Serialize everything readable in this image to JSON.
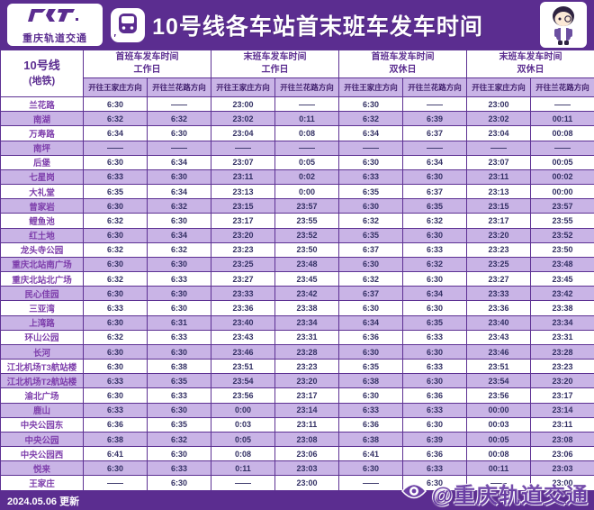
{
  "header": {
    "logo_text": "重庆轨道交通",
    "title": "10号线各车站首末班车发车时间"
  },
  "icons": {
    "train-icon": "metro train front glyph",
    "crt-logo-icon": "stylized CRT monogram",
    "mascot-icon": "CRT cartoon mascot",
    "eye-icon": "weibo eye watermark glyph"
  },
  "colors": {
    "brand_purple": "#5b2d90",
    "stripe_lavender": "#c9b4e6",
    "dir_header_lavender": "#c9b4e6",
    "time_text": "#333064",
    "station_text": "#7d3dab"
  },
  "table": {
    "line_label_1": "10号线",
    "line_label_2": "(地铁)",
    "groups": [
      {
        "title": "首班车发车时间",
        "day": "工作日"
      },
      {
        "title": "末班车发车时间",
        "day": "工作日"
      },
      {
        "title": "首班车发车时间",
        "day": "双休日"
      },
      {
        "title": "末班车发车时间",
        "day": "双休日"
      }
    ],
    "direction_a": "开往王家庄方向",
    "direction_b": "开往兰花路方向",
    "rows": [
      {
        "station": "兰花路",
        "times": [
          "6:30",
          "——",
          "23:00",
          "——",
          "6:30",
          "——",
          "23:00",
          "——"
        ]
      },
      {
        "station": "南湖",
        "times": [
          "6:32",
          "6:32",
          "23:02",
          "0:11",
          "6:32",
          "6:39",
          "23:02",
          "00:11"
        ]
      },
      {
        "station": "万寿路",
        "times": [
          "6:34",
          "6:30",
          "23:04",
          "0:08",
          "6:34",
          "6:37",
          "23:04",
          "00:08"
        ]
      },
      {
        "station": "南坪",
        "times": [
          "——",
          "——",
          "——",
          "——",
          "——",
          "——",
          "——",
          "——"
        ]
      },
      {
        "station": "后堡",
        "times": [
          "6:30",
          "6:34",
          "23:07",
          "0:05",
          "6:30",
          "6:34",
          "23:07",
          "00:05"
        ]
      },
      {
        "station": "七星岗",
        "times": [
          "6:33",
          "6:30",
          "23:11",
          "0:02",
          "6:33",
          "6:30",
          "23:11",
          "00:02"
        ]
      },
      {
        "station": "大礼堂",
        "times": [
          "6:35",
          "6:34",
          "23:13",
          "0:00",
          "6:35",
          "6:37",
          "23:13",
          "00:00"
        ]
      },
      {
        "station": "曾家岩",
        "times": [
          "6:30",
          "6:32",
          "23:15",
          "23:57",
          "6:30",
          "6:35",
          "23:15",
          "23:57"
        ]
      },
      {
        "station": "鲤鱼池",
        "times": [
          "6:32",
          "6:30",
          "23:17",
          "23:55",
          "6:32",
          "6:32",
          "23:17",
          "23:55"
        ]
      },
      {
        "station": "红土地",
        "times": [
          "6:30",
          "6:34",
          "23:20",
          "23:52",
          "6:35",
          "6:30",
          "23:20",
          "23:52"
        ]
      },
      {
        "station": "龙头寺公园",
        "times": [
          "6:32",
          "6:32",
          "23:23",
          "23:50",
          "6:37",
          "6:33",
          "23:23",
          "23:50"
        ]
      },
      {
        "station": "重庆北站南广场",
        "times": [
          "6:30",
          "6:30",
          "23:25",
          "23:48",
          "6:30",
          "6:32",
          "23:25",
          "23:48"
        ]
      },
      {
        "station": "重庆北站北广场",
        "times": [
          "6:32",
          "6:33",
          "23:27",
          "23:45",
          "6:32",
          "6:30",
          "23:27",
          "23:45"
        ]
      },
      {
        "station": "民心佳园",
        "times": [
          "6:30",
          "6:30",
          "23:33",
          "23:42",
          "6:37",
          "6:34",
          "23:33",
          "23:42"
        ]
      },
      {
        "station": "三亚湾",
        "times": [
          "6:33",
          "6:30",
          "23:36",
          "23:38",
          "6:30",
          "6:30",
          "23:36",
          "23:38"
        ]
      },
      {
        "station": "上湾路",
        "times": [
          "6:30",
          "6:31",
          "23:40",
          "23:34",
          "6:34",
          "6:35",
          "23:40",
          "23:34"
        ]
      },
      {
        "station": "环山公园",
        "times": [
          "6:32",
          "6:33",
          "23:43",
          "23:31",
          "6:36",
          "6:33",
          "23:43",
          "23:31"
        ]
      },
      {
        "station": "长河",
        "times": [
          "6:30",
          "6:30",
          "23:46",
          "23:28",
          "6:30",
          "6:30",
          "23:46",
          "23:28"
        ]
      },
      {
        "station": "江北机场T3航站楼",
        "times": [
          "6:30",
          "6:38",
          "23:51",
          "23:23",
          "6:35",
          "6:33",
          "23:51",
          "23:23"
        ]
      },
      {
        "station": "江北机场T2航站楼",
        "times": [
          "6:33",
          "6:35",
          "23:54",
          "23:20",
          "6:38",
          "6:30",
          "23:54",
          "23:20"
        ]
      },
      {
        "station": "渝北广场",
        "times": [
          "6:30",
          "6:33",
          "23:56",
          "23:17",
          "6:30",
          "6:36",
          "23:56",
          "23:17"
        ]
      },
      {
        "station": "鹿山",
        "times": [
          "6:33",
          "6:30",
          "0:00",
          "23:14",
          "6:33",
          "6:33",
          "00:00",
          "23:14"
        ]
      },
      {
        "station": "中央公园东",
        "times": [
          "6:36",
          "6:35",
          "0:03",
          "23:11",
          "6:36",
          "6:30",
          "00:03",
          "23:11"
        ]
      },
      {
        "station": "中央公园",
        "times": [
          "6:38",
          "6:32",
          "0:05",
          "23:08",
          "6:38",
          "6:39",
          "00:05",
          "23:08"
        ]
      },
      {
        "station": "中央公园西",
        "times": [
          "6:41",
          "6:30",
          "0:08",
          "23:06",
          "6:41",
          "6:36",
          "00:08",
          "23:06"
        ]
      },
      {
        "station": "悦来",
        "times": [
          "6:30",
          "6:33",
          "0:11",
          "23:03",
          "6:30",
          "6:33",
          "00:11",
          "23:03"
        ]
      },
      {
        "station": "王家庄",
        "times": [
          "——",
          "6:30",
          "——",
          "23:00",
          "——",
          "6:30",
          "——",
          "23:00"
        ]
      }
    ]
  },
  "footer": {
    "updated": "2024.05.06  更新",
    "watermark": "@重庆轨道交通"
  }
}
